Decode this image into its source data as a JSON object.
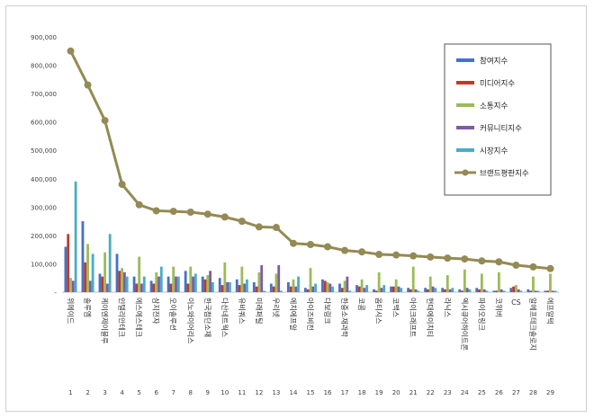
{
  "chart_data": {
    "type": "bar",
    "title": "",
    "xlabel": "",
    "ylabel": "",
    "ylim": [
      0,
      900000
    ],
    "yticks": [
      "-",
      "100,000",
      "200,000",
      "300,000",
      "400,000",
      "500,000",
      "600,000",
      "700,000",
      "800,000",
      "900,000"
    ],
    "ytick_values": [
      0,
      100000,
      200000,
      300000,
      400000,
      500000,
      600000,
      700000,
      800000,
      900000
    ],
    "grid": false,
    "legend_position": "top-right",
    "ranks": [
      "1",
      "2",
      "3",
      "4",
      "5",
      "6",
      "7",
      "8",
      "9",
      "10",
      "11",
      "12",
      "13",
      "14",
      "15",
      "16",
      "17",
      "18",
      "19",
      "20",
      "21",
      "22",
      "23",
      "24",
      "25",
      "26",
      "27",
      "28",
      "29"
    ],
    "categories": [
      "위메이드",
      "솔루엠",
      "케이엔제이블루",
      "인텔리안테크",
      "에스에스테크",
      "삼지전자",
      "오이솔루션",
      "이노와이어리스",
      "한국첨단소재",
      "다산네트웍스",
      "유비쿼스",
      "미래퍼틸",
      "우리넷",
      "에치에프알",
      "아이즈비전",
      "다보링크",
      "한중소재과학",
      "코콤",
      "옵티시스",
      "코맥스",
      "아이크래프트",
      "현대에이치티",
      "라닉스",
      "엑시큐어하이트론",
      "파이오링크",
      "코위버",
      "CS",
      "알에프테크솔로지",
      "에프알텍"
    ],
    "series": [
      {
        "name": "참여지수",
        "color": "#4472c4",
        "values": [
          160000,
          250000,
          65000,
          135000,
          55000,
          40000,
          55000,
          75000,
          55000,
          50000,
          45000,
          35000,
          30000,
          35000,
          15000,
          45000,
          30000,
          25000,
          10000,
          20000,
          15000,
          15000,
          15000,
          10000,
          15000,
          5000,
          15000,
          10000,
          5000
        ]
      },
      {
        "name": "미디어지수",
        "color": "#c0392b",
        "values": [
          205000,
          105000,
          55000,
          75000,
          30000,
          30000,
          30000,
          30000,
          45000,
          25000,
          25000,
          20000,
          20000,
          20000,
          10000,
          40000,
          15000,
          20000,
          5000,
          20000,
          10000,
          10000,
          10000,
          5000,
          10000,
          5000,
          20000,
          5000,
          5000
        ]
      },
      {
        "name": "소통지수",
        "color": "#9bbb59",
        "values": [
          50000,
          170000,
          140000,
          85000,
          125000,
          70000,
          90000,
          90000,
          60000,
          105000,
          90000,
          70000,
          65000,
          45000,
          85000,
          35000,
          40000,
          45000,
          70000,
          45000,
          90000,
          55000,
          60000,
          80000,
          65000,
          70000,
          25000,
          55000,
          65000
        ]
      },
      {
        "name": "커뮤니티지수",
        "color": "#7d5ba6",
        "values": [
          40000,
          40000,
          30000,
          70000,
          30000,
          55000,
          55000,
          55000,
          75000,
          35000,
          30000,
          95000,
          95000,
          20000,
          20000,
          30000,
          55000,
          15000,
          15000,
          20000,
          10000,
          20000,
          10000,
          15000,
          10000,
          10000,
          10000,
          5000,
          5000
        ]
      },
      {
        "name": "시장지수",
        "color": "#4bacc6",
        "values": [
          390000,
          135000,
          205000,
          55000,
          55000,
          90000,
          55000,
          65000,
          35000,
          35000,
          45000,
          5000,
          5000,
          55000,
          30000,
          20000,
          5000,
          25000,
          25000,
          15000,
          5000,
          15000,
          15000,
          10000,
          5000,
          5000,
          5000,
          5000,
          5000
        ]
      }
    ],
    "line_series": {
      "name": "브랜드평판지수",
      "color": "#948a54",
      "values": [
        850000,
        730000,
        605000,
        380000,
        308000,
        287000,
        285000,
        282000,
        275000,
        265000,
        250000,
        230000,
        228000,
        172000,
        168000,
        160000,
        147000,
        142000,
        133000,
        131000,
        128000,
        124000,
        120000,
        117000,
        110000,
        107000,
        95000,
        89000,
        83000
      ]
    }
  }
}
